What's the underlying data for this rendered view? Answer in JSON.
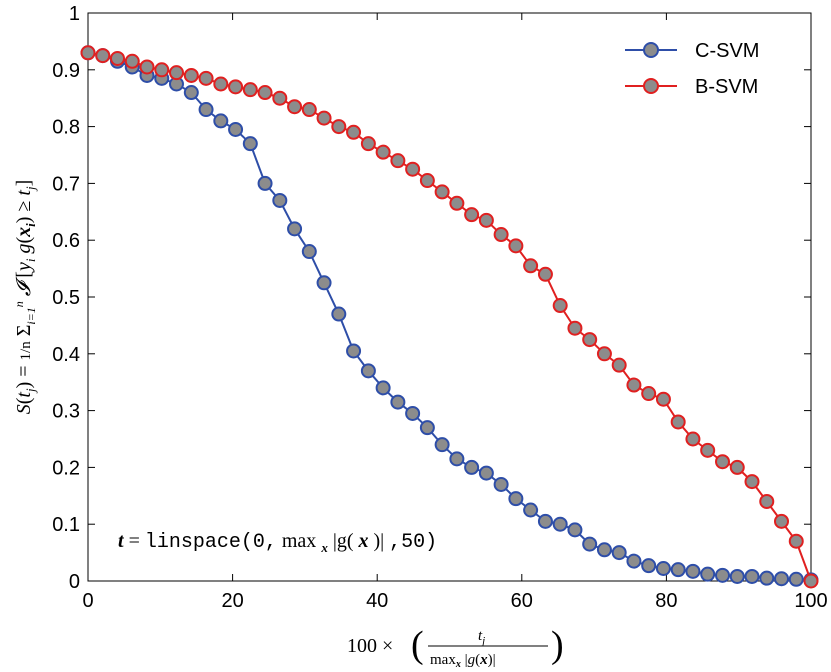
{
  "chart_data": {
    "type": "line",
    "x": [
      0,
      2.04,
      4.08,
      6.12,
      8.16,
      10.2,
      12.24,
      14.29,
      16.33,
      18.37,
      20.41,
      22.45,
      24.49,
      26.53,
      28.57,
      30.61,
      32.65,
      34.69,
      36.73,
      38.78,
      40.82,
      42.86,
      44.9,
      46.94,
      48.98,
      51.02,
      53.06,
      55.1,
      57.14,
      59.18,
      61.22,
      63.27,
      65.31,
      67.35,
      69.39,
      71.43,
      73.47,
      75.51,
      77.55,
      79.59,
      81.63,
      83.67,
      85.71,
      87.76,
      89.8,
      91.84,
      93.88,
      95.92,
      97.96,
      100
    ],
    "series": [
      {
        "name": "C-SVM",
        "color": "#2e4ea8",
        "marker_fill": "#8c8c8c",
        "values": [
          0.93,
          0.925,
          0.915,
          0.905,
          0.89,
          0.885,
          0.875,
          0.86,
          0.83,
          0.81,
          0.795,
          0.77,
          0.7,
          0.67,
          0.62,
          0.58,
          0.525,
          0.47,
          0.405,
          0.37,
          0.34,
          0.315,
          0.295,
          0.27,
          0.24,
          0.215,
          0.2,
          0.19,
          0.17,
          0.145,
          0.125,
          0.105,
          0.1,
          0.09,
          0.065,
          0.055,
          0.05,
          0.035,
          0.027,
          0.022,
          0.02,
          0.017,
          0.012,
          0.01,
          0.008,
          0.008,
          0.005,
          0.004,
          0.003,
          0.002
        ]
      },
      {
        "name": "B-SVM",
        "color": "#e02020",
        "marker_fill": "#8c8c8c",
        "values": [
          0.93,
          0.925,
          0.92,
          0.915,
          0.905,
          0.9,
          0.895,
          0.89,
          0.885,
          0.875,
          0.87,
          0.865,
          0.86,
          0.85,
          0.835,
          0.83,
          0.815,
          0.8,
          0.79,
          0.77,
          0.755,
          0.74,
          0.725,
          0.705,
          0.685,
          0.665,
          0.645,
          0.635,
          0.61,
          0.59,
          0.555,
          0.54,
          0.485,
          0.445,
          0.425,
          0.4,
          0.38,
          0.345,
          0.33,
          0.32,
          0.28,
          0.25,
          0.23,
          0.21,
          0.2,
          0.175,
          0.14,
          0.105,
          0.07,
          0.0
        ]
      }
    ],
    "xlim": [
      0,
      100
    ],
    "ylim": [
      0,
      1
    ],
    "xticks": [
      0,
      20,
      40,
      60,
      80,
      100
    ],
    "yticks": [
      0,
      0.1,
      0.2,
      0.3,
      0.4,
      0.5,
      0.6,
      0.7,
      0.8,
      0.9,
      1
    ],
    "xtick_labels": [
      "0",
      "20",
      "40",
      "60",
      "80",
      "100"
    ],
    "ytick_labels": [
      "0",
      "0.1",
      "0.2",
      "0.3",
      "0.4",
      "0.5",
      "0.6",
      "0.7",
      "0.8",
      "0.9",
      "1"
    ],
    "legend": "top-right",
    "grid": false,
    "xlabel": "100 × ( t_j / max_x |g(x)| )",
    "ylabel": "S(t_j) = (1/n) Σ_{i=1}^{n} I[y_i g(x_i) ≥ t_j]",
    "annotation": "t = linspace(0, max_x |g(x)|, 50)"
  }
}
